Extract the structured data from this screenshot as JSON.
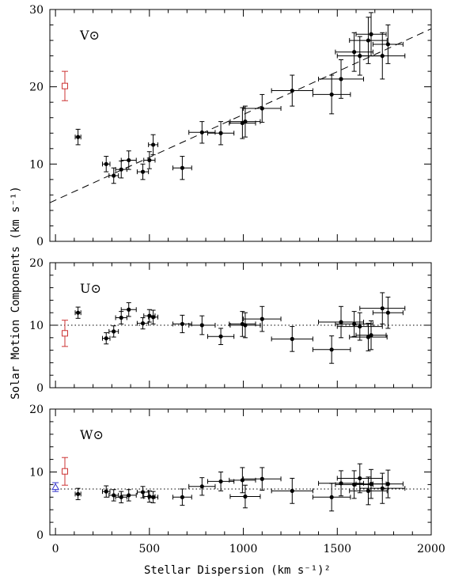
{
  "figure": {
    "ylabel": "Solar Motion Components (km s⁻¹)",
    "xlabel": "Stellar Dispersion (km s⁻¹)²"
  },
  "chart_data": [
    {
      "type": "scatter",
      "panel_label": "V⊙",
      "xlim": [
        -30,
        2000
      ],
      "ylim": [
        0,
        30
      ],
      "x_ticks": [
        0,
        500,
        1000,
        1500,
        2000
      ],
      "y_ticks": [
        0,
        10,
        20,
        30
      ],
      "grid": false,
      "fit_line": {
        "style": "dashed",
        "x": [
          -30,
          2000
        ],
        "y": [
          5.0,
          27.5
        ]
      },
      "reference_points": [
        {
          "x": 50,
          "y": 20.1,
          "err_y": 1.9,
          "marker": "open-square",
          "color": "#cc3333"
        }
      ],
      "points": [
        {
          "x": 120,
          "y": 13.5,
          "ex": 15,
          "ey": 1.0
        },
        {
          "x": 270,
          "y": 10.0,
          "ex": 20,
          "ey": 1.0
        },
        {
          "x": 310,
          "y": 8.5,
          "ex": 25,
          "ey": 1.0
        },
        {
          "x": 350,
          "y": 9.3,
          "ex": 30,
          "ey": 1.1
        },
        {
          "x": 390,
          "y": 10.5,
          "ex": 40,
          "ey": 1.2
        },
        {
          "x": 465,
          "y": 9.0,
          "ex": 30,
          "ey": 1.0
        },
        {
          "x": 500,
          "y": 10.5,
          "ex": 30,
          "ey": 1.1
        },
        {
          "x": 520,
          "y": 12.5,
          "ex": 25,
          "ey": 1.3
        },
        {
          "x": 675,
          "y": 9.5,
          "ex": 50,
          "ey": 1.5
        },
        {
          "x": 780,
          "y": 14.1,
          "ex": 70,
          "ey": 1.4
        },
        {
          "x": 880,
          "y": 14.0,
          "ex": 70,
          "ey": 1.5
        },
        {
          "x": 995,
          "y": 15.3,
          "ex": 70,
          "ey": 2.0
        },
        {
          "x": 1010,
          "y": 15.5,
          "ex": 80,
          "ey": 2.0
        },
        {
          "x": 1100,
          "y": 17.2,
          "ex": 100,
          "ey": 1.8
        },
        {
          "x": 1260,
          "y": 19.5,
          "ex": 110,
          "ey": 2.0
        },
        {
          "x": 1470,
          "y": 19.0,
          "ex": 100,
          "ey": 2.5
        },
        {
          "x": 1520,
          "y": 21.0,
          "ex": 120,
          "ey": 2.5
        },
        {
          "x": 1590,
          "y": 24.5,
          "ex": 100,
          "ey": 2.5
        },
        {
          "x": 1620,
          "y": 24.0,
          "ex": 120,
          "ey": 2.5
        },
        {
          "x": 1665,
          "y": 26.0,
          "ex": 100,
          "ey": 3.0
        },
        {
          "x": 1680,
          "y": 26.8,
          "ex": 80,
          "ey": 2.8
        },
        {
          "x": 1740,
          "y": 24.0,
          "ex": 120,
          "ey": 3.0
        },
        {
          "x": 1770,
          "y": 25.5,
          "ex": 80,
          "ey": 2.5
        }
      ]
    },
    {
      "type": "scatter",
      "panel_label": "U⊙",
      "xlim": [
        -30,
        2000
      ],
      "ylim": [
        0,
        20
      ],
      "x_ticks": [
        0,
        500,
        1000,
        1500,
        2000
      ],
      "y_ticks": [
        0,
        10,
        20
      ],
      "grid": false,
      "ref_line": {
        "style": "dotted",
        "y": 10.0
      },
      "reference_points": [
        {
          "x": 50,
          "y": 8.7,
          "err_y": 2.1,
          "marker": "open-square",
          "color": "#cc3333"
        }
      ],
      "points": [
        {
          "x": 120,
          "y": 12.0,
          "ex": 15,
          "ey": 0.9
        },
        {
          "x": 270,
          "y": 7.9,
          "ex": 20,
          "ey": 0.9
        },
        {
          "x": 310,
          "y": 9.0,
          "ex": 25,
          "ey": 0.9
        },
        {
          "x": 350,
          "y": 11.2,
          "ex": 30,
          "ey": 1.0
        },
        {
          "x": 390,
          "y": 12.5,
          "ex": 40,
          "ey": 1.1
        },
        {
          "x": 465,
          "y": 10.3,
          "ex": 30,
          "ey": 0.9
        },
        {
          "x": 500,
          "y": 11.5,
          "ex": 30,
          "ey": 1.0
        },
        {
          "x": 520,
          "y": 11.3,
          "ex": 25,
          "ey": 1.1
        },
        {
          "x": 675,
          "y": 10.2,
          "ex": 50,
          "ey": 1.4
        },
        {
          "x": 780,
          "y": 10.0,
          "ex": 70,
          "ey": 1.5
        },
        {
          "x": 880,
          "y": 8.2,
          "ex": 70,
          "ey": 1.3
        },
        {
          "x": 995,
          "y": 10.2,
          "ex": 70,
          "ey": 2.0
        },
        {
          "x": 1010,
          "y": 10.0,
          "ex": 80,
          "ey": 2.0
        },
        {
          "x": 1100,
          "y": 11.0,
          "ex": 100,
          "ey": 2.0
        },
        {
          "x": 1260,
          "y": 7.8,
          "ex": 110,
          "ey": 2.0
        },
        {
          "x": 1470,
          "y": 6.1,
          "ex": 100,
          "ey": 2.2
        },
        {
          "x": 1520,
          "y": 10.5,
          "ex": 120,
          "ey": 2.5
        },
        {
          "x": 1590,
          "y": 10.2,
          "ex": 100,
          "ey": 2.0
        },
        {
          "x": 1620,
          "y": 9.8,
          "ex": 120,
          "ey": 2.2
        },
        {
          "x": 1665,
          "y": 8.1,
          "ex": 100,
          "ey": 2.2
        },
        {
          "x": 1680,
          "y": 8.4,
          "ex": 80,
          "ey": 2.3
        },
        {
          "x": 1740,
          "y": 12.7,
          "ex": 120,
          "ey": 2.5
        },
        {
          "x": 1770,
          "y": 12.0,
          "ex": 80,
          "ey": 2.5
        }
      ]
    },
    {
      "type": "scatter",
      "panel_label": "W⊙",
      "xlim": [
        -30,
        2000
      ],
      "ylim": [
        0,
        20
      ],
      "x_ticks": [
        0,
        500,
        1000,
        1500,
        2000
      ],
      "y_ticks": [
        0,
        10,
        20
      ],
      "grid": false,
      "ref_line": {
        "style": "dotted",
        "y": 7.3
      },
      "reference_points": [
        {
          "x": 50,
          "y": 10.1,
          "err_y": 2.2,
          "marker": "open-square",
          "color": "#cc3333"
        },
        {
          "x": 0,
          "y": 7.6,
          "err_y": 0.7,
          "marker": "open-triangle",
          "color": "#3333cc"
        }
      ],
      "points": [
        {
          "x": 120,
          "y": 6.5,
          "ex": 15,
          "ey": 0.9
        },
        {
          "x": 270,
          "y": 6.9,
          "ex": 20,
          "ey": 0.9
        },
        {
          "x": 310,
          "y": 6.3,
          "ex": 25,
          "ey": 0.9
        },
        {
          "x": 350,
          "y": 6.0,
          "ex": 30,
          "ey": 0.9
        },
        {
          "x": 390,
          "y": 6.3,
          "ex": 40,
          "ey": 0.9
        },
        {
          "x": 465,
          "y": 6.8,
          "ex": 30,
          "ey": 0.9
        },
        {
          "x": 500,
          "y": 6.1,
          "ex": 30,
          "ey": 0.9
        },
        {
          "x": 520,
          "y": 6.0,
          "ex": 25,
          "ey": 0.9
        },
        {
          "x": 675,
          "y": 6.0,
          "ex": 50,
          "ey": 1.3
        },
        {
          "x": 780,
          "y": 7.7,
          "ex": 70,
          "ey": 1.4
        },
        {
          "x": 880,
          "y": 8.5,
          "ex": 70,
          "ey": 1.5
        },
        {
          "x": 995,
          "y": 8.7,
          "ex": 70,
          "ey": 2.0
        },
        {
          "x": 1010,
          "y": 6.1,
          "ex": 80,
          "ey": 1.8
        },
        {
          "x": 1100,
          "y": 8.9,
          "ex": 100,
          "ey": 1.8
        },
        {
          "x": 1260,
          "y": 7.0,
          "ex": 110,
          "ey": 2.0
        },
        {
          "x": 1470,
          "y": 6.0,
          "ex": 100,
          "ey": 2.2
        },
        {
          "x": 1520,
          "y": 8.2,
          "ex": 120,
          "ey": 2.0
        },
        {
          "x": 1590,
          "y": 8.0,
          "ex": 100,
          "ey": 2.2
        },
        {
          "x": 1620,
          "y": 9.0,
          "ex": 120,
          "ey": 2.3
        },
        {
          "x": 1665,
          "y": 7.0,
          "ex": 100,
          "ey": 2.2
        },
        {
          "x": 1680,
          "y": 8.1,
          "ex": 80,
          "ey": 2.3
        },
        {
          "x": 1740,
          "y": 7.4,
          "ex": 120,
          "ey": 2.4
        },
        {
          "x": 1770,
          "y": 8.1,
          "ex": 80,
          "ey": 2.2
        }
      ]
    }
  ]
}
